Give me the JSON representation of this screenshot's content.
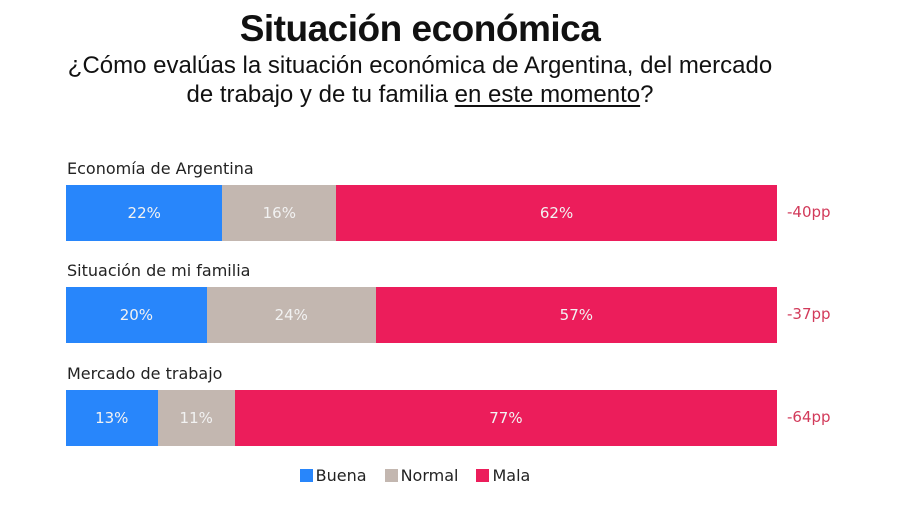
{
  "chart_data": {
    "type": "bar",
    "orientation": "horizontal-stacked-100",
    "title": "Situación económica",
    "subtitle_plain": "¿Cómo evalúas la situación económica de Argentina, del mercado de trabajo y de tu familia ",
    "subtitle_underlined": "en este momento",
    "subtitle_end": "?",
    "categories": [
      "Economía de Argentina",
      "Situación de mi familia",
      "Mercado de trabajo"
    ],
    "series": [
      {
        "name": "Buena",
        "color": "#2886fb",
        "values": [
          22,
          20,
          13
        ]
      },
      {
        "name": "Normal",
        "color": "#c3b7b0",
        "values": [
          16,
          24,
          11
        ]
      },
      {
        "name": "Mala",
        "color": "#ec1d5b",
        "values": [
          62,
          57,
          77
        ]
      }
    ],
    "annotations": [
      "-40pp",
      "-37pp",
      "-64pp"
    ],
    "value_suffix": "%",
    "legend_position": "bottom",
    "xlim": [
      0,
      100
    ]
  }
}
